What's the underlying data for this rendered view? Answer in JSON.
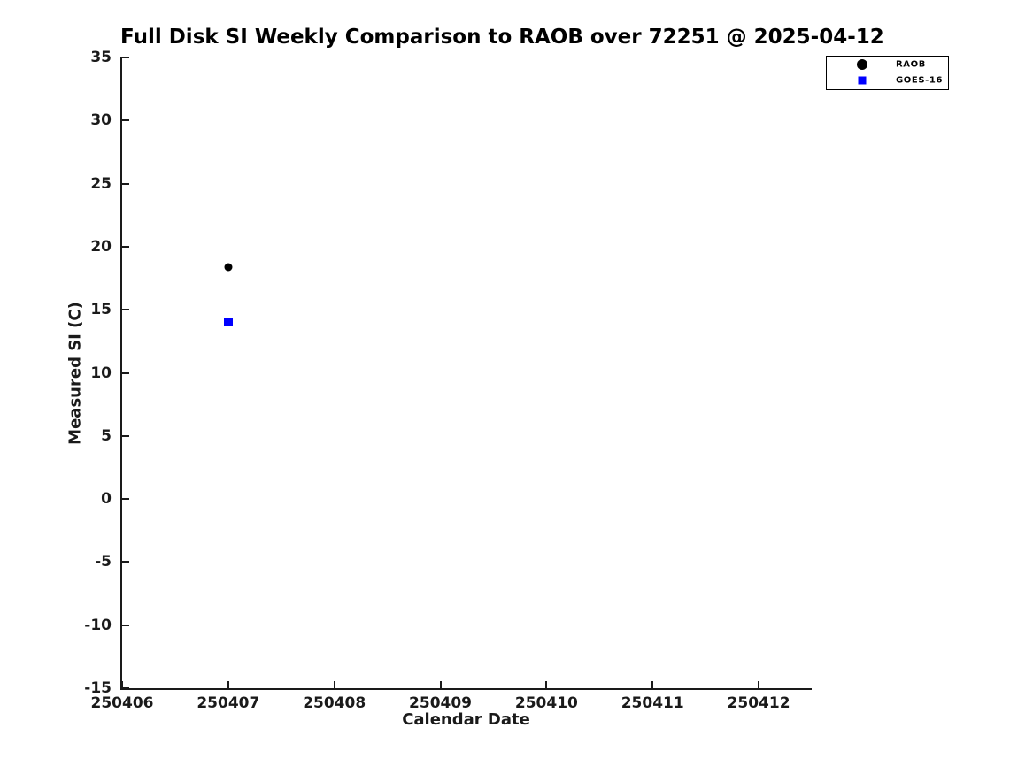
{
  "chart_data": {
    "type": "scatter",
    "title": "Full Disk SI Weekly Comparison to RAOB over 72251 @ 2025-04-12",
    "xlabel": "Calendar Date",
    "ylabel": "Measured SI (C)",
    "xlim": [
      250406,
      250412.5
    ],
    "ylim": [
      -15,
      35
    ],
    "x_ticks": [
      250406,
      250407,
      250408,
      250409,
      250410,
      250411,
      250412
    ],
    "y_ticks": [
      35,
      30,
      25,
      20,
      15,
      10,
      5,
      0,
      -5,
      -10,
      -15
    ],
    "grid": false,
    "legend_position": "outside-top-right",
    "series": [
      {
        "name": "RAOB",
        "marker": "circle",
        "color": "#000000",
        "points": [
          {
            "x": 250407,
            "y": 18.4
          }
        ]
      },
      {
        "name": "GOES-16",
        "marker": "square",
        "color": "#0000ff",
        "points": [
          {
            "x": 250407,
            "y": 14.0
          }
        ]
      }
    ]
  }
}
